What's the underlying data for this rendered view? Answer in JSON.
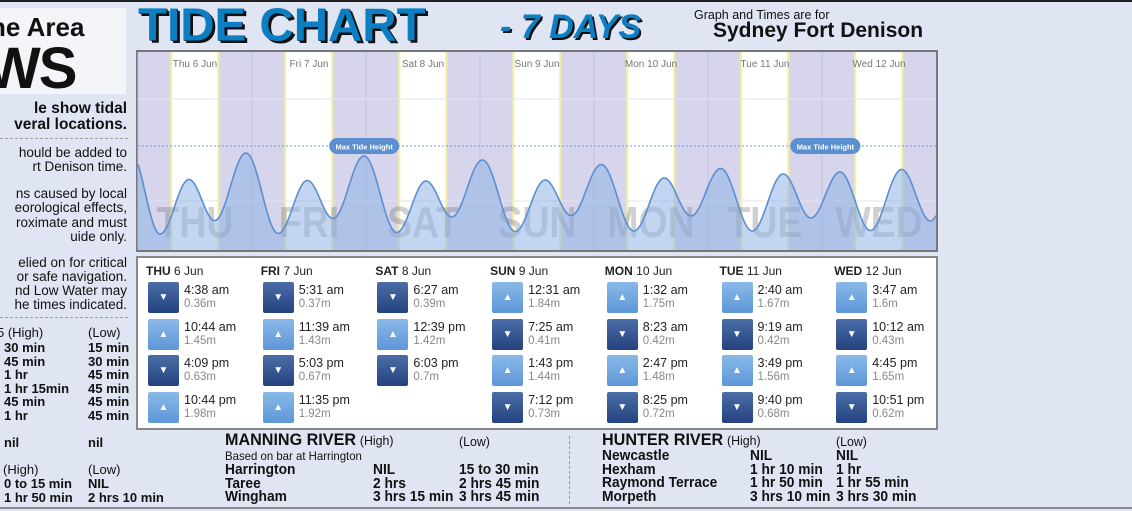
{
  "left_panel": {
    "logo_lines": [
      "he Area",
      "WS"
    ],
    "heading": [
      "le show tidal",
      "veral locations."
    ],
    "para1": [
      "hould be added to",
      "rt Denison time."
    ],
    "para2": [
      "ns caused by local",
      "eorological effects,",
      "roximate and must",
      "uide only."
    ],
    "para3": [
      "elied on for critical",
      "or safe navigation.",
      "nd Low Water may",
      "he times indicated."
    ],
    "table1": {
      "header_high": "5 (High)",
      "header_low": "(Low)",
      "rows": [
        [
          "30 min",
          "15 min"
        ],
        [
          "45 min",
          "30 min"
        ],
        [
          "1 hr",
          "45 min"
        ],
        [
          "1 hr 15min",
          "45 min"
        ],
        [
          "45 min",
          "45 min"
        ],
        [
          "1 hr",
          "45 min"
        ]
      ]
    },
    "nil_row": [
      "nil",
      "nil"
    ],
    "table2": {
      "header_high": "(High)",
      "header_low": "(Low)",
      "rows": [
        [
          "0 to 15 min",
          "NIL"
        ],
        [
          "1 hr 50 min",
          "2 hrs 10 min"
        ]
      ]
    }
  },
  "header": {
    "title": "TIDE CHART",
    "subtitle": "- 7 DAYS",
    "graph_for": "Graph and Times are for",
    "location": "Sydney Fort Denison"
  },
  "chart_data": {
    "type": "area",
    "title": "",
    "xlabel": "",
    "ylabel": "",
    "x_range": [
      "Thu 6 Jun 00:00",
      "Wed 12 Jun 24:00"
    ],
    "day_labels": [
      "Thu 6 Jun",
      "Fri 7 Jun",
      "Sat 8 Jun",
      "Sun 9 Jun",
      "Mon 10 Jun",
      "Tue 11 Jun",
      "Wed 12 Jun"
    ],
    "watermark_days": [
      "THU",
      "FRI",
      "SAT",
      "SUN",
      "MON",
      "TUE",
      "WED"
    ],
    "max_tide_label": "Max Tide Height",
    "unit": "m",
    "grid": true,
    "colors": {
      "line": "#5b8fd0",
      "fill": "#8fb5e6",
      "night": "#d6d5ec",
      "day": "#ffffff",
      "sun_line": "#f6efa0"
    },
    "series": [
      {
        "x": [
          "Thu 04:38",
          "Thu 10:44",
          "Thu 16:09",
          "Thu 22:44",
          "Fri 05:31",
          "Fri 11:39",
          "Fri 17:03",
          "Fri 23:35",
          "Sat 06:27",
          "Sat 12:39",
          "Sat 18:03",
          "Sun 00:31",
          "Sun 07:25",
          "Sun 13:43",
          "Sun 19:12",
          "Mon 01:32",
          "Mon 08:23",
          "Mon 14:47",
          "Mon 20:25",
          "Tue 02:40",
          "Tue 09:19",
          "Tue 15:49",
          "Tue 21:40",
          "Wed 03:47",
          "Wed 10:12",
          "Wed 16:45",
          "Wed 22:51"
        ],
        "y": [
          0.36,
          1.45,
          0.63,
          1.98,
          0.37,
          1.43,
          0.67,
          1.92,
          0.39,
          1.42,
          0.7,
          1.84,
          0.41,
          1.44,
          0.73,
          1.75,
          0.42,
          1.48,
          0.72,
          1.67,
          0.42,
          1.56,
          0.68,
          1.6,
          0.43,
          1.65,
          0.62
        ]
      }
    ]
  },
  "tide_table": [
    {
      "day": "THU",
      "date": "6 Jun",
      "tides": [
        {
          "type": "low",
          "time": "4:38 am",
          "height": "0.36m"
        },
        {
          "type": "high",
          "time": "10:44 am",
          "height": "1.45m"
        },
        {
          "type": "low",
          "time": "4:09 pm",
          "height": "0.63m"
        },
        {
          "type": "high",
          "time": "10:44 pm",
          "height": "1.98m"
        }
      ]
    },
    {
      "day": "FRI",
      "date": "7 Jun",
      "tides": [
        {
          "type": "low",
          "time": "5:31 am",
          "height": "0.37m"
        },
        {
          "type": "high",
          "time": "11:39 am",
          "height": "1.43m"
        },
        {
          "type": "low",
          "time": "5:03 pm",
          "height": "0.67m"
        },
        {
          "type": "high",
          "time": "11:35 pm",
          "height": "1.92m"
        }
      ]
    },
    {
      "day": "SAT",
      "date": "8 Jun",
      "tides": [
        {
          "type": "low",
          "time": "6:27 am",
          "height": "0.39m"
        },
        {
          "type": "high",
          "time": "12:39 pm",
          "height": "1.42m"
        },
        {
          "type": "low",
          "time": "6:03 pm",
          "height": "0.7m"
        }
      ]
    },
    {
      "day": "SUN",
      "date": "9 Jun",
      "tides": [
        {
          "type": "high",
          "time": "12:31 am",
          "height": "1.84m"
        },
        {
          "type": "low",
          "time": "7:25 am",
          "height": "0.41m"
        },
        {
          "type": "high",
          "time": "1:43 pm",
          "height": "1.44m"
        },
        {
          "type": "low",
          "time": "7:12 pm",
          "height": "0.73m"
        }
      ]
    },
    {
      "day": "MON",
      "date": "10 Jun",
      "tides": [
        {
          "type": "high",
          "time": "1:32 am",
          "height": "1.75m"
        },
        {
          "type": "low",
          "time": "8:23 am",
          "height": "0.42m"
        },
        {
          "type": "high",
          "time": "2:47 pm",
          "height": "1.48m"
        },
        {
          "type": "low",
          "time": "8:25 pm",
          "height": "0.72m"
        }
      ]
    },
    {
      "day": "TUE",
      "date": "11 Jun",
      "tides": [
        {
          "type": "high",
          "time": "2:40 am",
          "height": "1.67m"
        },
        {
          "type": "low",
          "time": "9:19 am",
          "height": "0.42m"
        },
        {
          "type": "high",
          "time": "3:49 pm",
          "height": "1.56m"
        },
        {
          "type": "low",
          "time": "9:40 pm",
          "height": "0.68m"
        }
      ]
    },
    {
      "day": "WED",
      "date": "12 Jun",
      "tides": [
        {
          "type": "high",
          "time": "3:47 am",
          "height": "1.6m"
        },
        {
          "type": "low",
          "time": "10:12 am",
          "height": "0.43m"
        },
        {
          "type": "high",
          "time": "4:45 pm",
          "height": "1.65m"
        },
        {
          "type": "low",
          "time": "10:51 pm",
          "height": "0.62m"
        }
      ]
    }
  ],
  "icons": {
    "high": "▲",
    "low": "▼"
  },
  "manning": {
    "title": "MANNING RIVER",
    "high": "(High)",
    "low": "(Low)",
    "note": "Based on bar at Harrington",
    "rows": [
      [
        "Harrington",
        "NIL",
        "15 to 30 min"
      ],
      [
        "Taree",
        "2 hrs",
        "2 hrs 45 min"
      ],
      [
        "Wingham",
        "3 hrs 15 min",
        "3 hrs 45 min"
      ]
    ]
  },
  "hunter": {
    "title": "HUNTER RIVER",
    "high": "(High)",
    "low": "(Low)",
    "rows": [
      [
        "Newcastle",
        "NIL",
        "NIL"
      ],
      [
        "Hexham",
        "1 hr 10 min",
        "1 hr"
      ],
      [
        "Raymond Terrace",
        "1 hr 50 min",
        "1 hr 55 min"
      ],
      [
        "Morpeth",
        "3 hrs 10 min",
        "3 hrs 30 min"
      ]
    ]
  }
}
